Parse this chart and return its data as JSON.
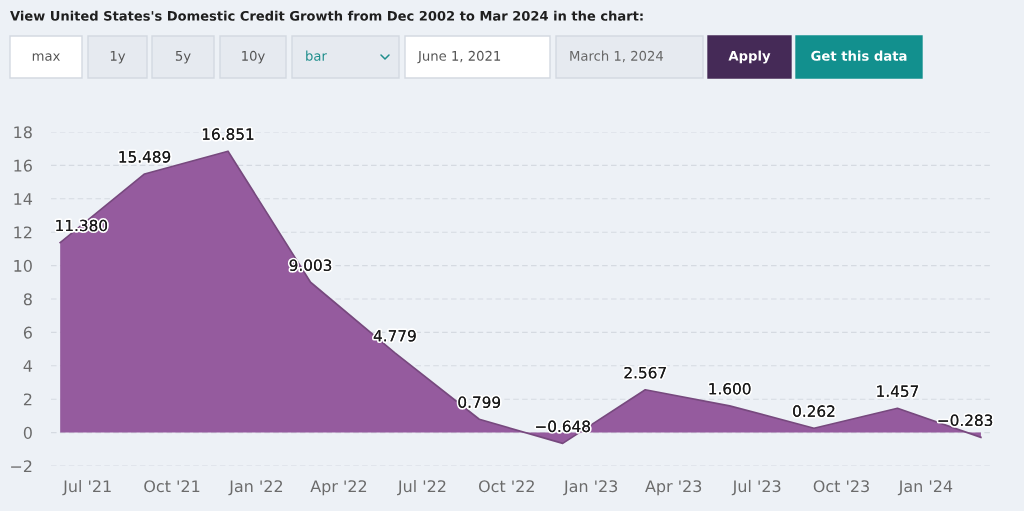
{
  "chart_data": {
    "type": "area",
    "title": "View United States's Domestic Credit Growth from Dec 2002 to Mar 2024 in the chart:",
    "annotations": [
      "max",
      "1y",
      "5y",
      "10y",
      "bar",
      "June 1, 2021",
      "March 1, 2024",
      "Apply",
      "Get this data"
    ],
    "x": [
      "2021-06-01",
      "2021-09-01",
      "2021-12-01",
      "2022-03-01",
      "2022-06-01",
      "2022-09-01",
      "2022-12-01",
      "2023-03-01",
      "2023-06-01",
      "2023-09-01",
      "2023-12-01",
      "2024-03-01"
    ],
    "values": [
      11.38,
      15.489,
      16.851,
      9.003,
      4.779,
      0.799,
      -0.648,
      2.567,
      1.6,
      0.262,
      1.457,
      -0.283
    ],
    "value_labels": [
      "11.380",
      "15.489",
      "16.851",
      "9.003",
      "4.779",
      "0.799",
      "−0.648",
      "2.567",
      "1.600",
      "0.262",
      "1.457",
      "−0.283"
    ],
    "color": "#955b9e",
    "xlim": [
      "2021-05-22",
      "2024-03-12"
    ],
    "xticks": [
      {
        "value": "2021-07-01",
        "label": "Jul '21"
      },
      {
        "value": "2021-10-01",
        "label": "Oct '21"
      },
      {
        "value": "2022-01-01",
        "label": "Jan '22"
      },
      {
        "value": "2022-04-01",
        "label": "Apr '22"
      },
      {
        "value": "2022-07-01",
        "label": "Jul '22"
      },
      {
        "value": "2022-10-01",
        "label": "Oct '22"
      },
      {
        "value": "2023-01-01",
        "label": "Jan '23"
      },
      {
        "value": "2023-04-01",
        "label": "Apr '23"
      },
      {
        "value": "2023-07-01",
        "label": "Jul '23"
      },
      {
        "value": "2023-10-01",
        "label": "Oct '23"
      },
      {
        "value": "2024-01-01",
        "label": "Jan '24"
      }
    ],
    "ylim": [
      -2,
      18
    ],
    "yticks": [
      {
        "value": -2,
        "label": "−2"
      },
      0,
      2,
      4,
      6,
      8,
      10,
      12,
      14,
      16,
      18
    ],
    "grid": "y",
    "marker": "none"
  }
}
